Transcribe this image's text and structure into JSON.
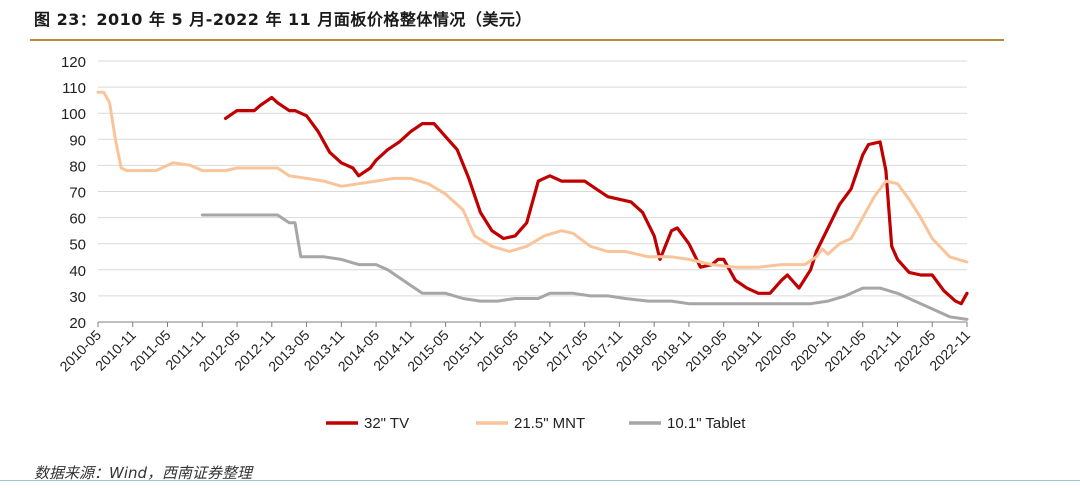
{
  "figure": {
    "title": "图 23：2010 年 5 月-2022 年 11 月面板价格整体情况（美元）",
    "source": "数据来源：Wind，西南证券整理"
  },
  "colors": {
    "tv": "#c00000",
    "mnt": "#f9c49a",
    "tablet": "#a6a6a6",
    "grid": "#d9d9d9",
    "axis": "#7f7f7f",
    "rule": "#b58b3a"
  },
  "chart_data": {
    "type": "line",
    "x_axis": "monthly, 2010-05 to 2022-11 (index 0 = 2010-05)",
    "x_tick_labels": [
      "2010-05",
      "2010-11",
      "2011-05",
      "2011-11",
      "2012-05",
      "2012-11",
      "2013-05",
      "2013-11",
      "2014-05",
      "2014-11",
      "2015-05",
      "2015-11",
      "2016-05",
      "2016-11",
      "2017-05",
      "2017-11",
      "2018-05",
      "2018-11",
      "2019-05",
      "2019-11",
      "2020-05",
      "2020-11",
      "2021-05",
      "2021-11",
      "2022-05",
      "2022-11"
    ],
    "xlim": [
      "2010-05",
      "2022-11"
    ],
    "y_ticks": [
      20,
      30,
      40,
      50,
      60,
      70,
      80,
      90,
      100,
      110,
      120
    ],
    "ylim": [
      20,
      120
    ],
    "grid": "horizontal",
    "legend_position": "bottom",
    "series": [
      {
        "name": "32\" TV",
        "color_key": "tv",
        "points": [
          [
            "2012-03",
            98
          ],
          [
            "2012-05",
            101
          ],
          [
            "2012-08",
            101
          ],
          [
            "2012-09",
            103
          ],
          [
            "2012-11",
            106
          ],
          [
            "2012-12",
            104
          ],
          [
            "2013-02",
            101
          ],
          [
            "2013-03",
            101
          ],
          [
            "2013-05",
            99
          ],
          [
            "2013-07",
            93
          ],
          [
            "2013-09",
            85
          ],
          [
            "2013-11",
            81
          ],
          [
            "2014-01",
            79
          ],
          [
            "2014-02",
            76
          ],
          [
            "2014-04",
            79
          ],
          [
            "2014-05",
            82
          ],
          [
            "2014-07",
            86
          ],
          [
            "2014-09",
            89
          ],
          [
            "2014-11",
            93
          ],
          [
            "2015-01",
            96
          ],
          [
            "2015-03",
            96
          ],
          [
            "2015-05",
            91
          ],
          [
            "2015-07",
            86
          ],
          [
            "2015-09",
            75
          ],
          [
            "2015-11",
            62
          ],
          [
            "2016-01",
            55
          ],
          [
            "2016-03",
            52
          ],
          [
            "2016-05",
            53
          ],
          [
            "2016-07",
            58
          ],
          [
            "2016-09",
            74
          ],
          [
            "2016-11",
            76
          ],
          [
            "2017-01",
            74
          ],
          [
            "2017-03",
            74
          ],
          [
            "2017-05",
            74
          ],
          [
            "2017-07",
            71
          ],
          [
            "2017-09",
            68
          ],
          [
            "2017-11",
            67
          ],
          [
            "2018-01",
            66
          ],
          [
            "2018-03",
            62
          ],
          [
            "2018-05",
            53
          ],
          [
            "2018-06",
            44
          ],
          [
            "2018-08",
            55
          ],
          [
            "2018-09",
            56
          ],
          [
            "2018-11",
            50
          ],
          [
            "2019-01",
            41
          ],
          [
            "2019-03",
            42
          ],
          [
            "2019-04",
            44
          ],
          [
            "2019-05",
            44
          ],
          [
            "2019-07",
            36
          ],
          [
            "2019-09",
            33
          ],
          [
            "2019-11",
            31
          ],
          [
            "2020-01",
            31
          ],
          [
            "2020-03",
            36
          ],
          [
            "2020-04",
            38
          ],
          [
            "2020-06",
            33
          ],
          [
            "2020-08",
            40
          ],
          [
            "2020-09",
            47
          ],
          [
            "2020-11",
            56
          ],
          [
            "2021-01",
            65
          ],
          [
            "2021-03",
            71
          ],
          [
            "2021-05",
            84
          ],
          [
            "2021-06",
            88
          ],
          [
            "2021-08",
            89
          ],
          [
            "2021-09",
            78
          ],
          [
            "2021-10",
            49
          ],
          [
            "2021-11",
            44
          ],
          [
            "2022-01",
            39
          ],
          [
            "2022-03",
            38
          ],
          [
            "2022-05",
            38
          ],
          [
            "2022-07",
            32
          ],
          [
            "2022-09",
            28
          ],
          [
            "2022-10",
            27
          ],
          [
            "2022-11",
            31
          ]
        ]
      },
      {
        "name": "21.5\" MNT",
        "color_key": "mnt",
        "points": [
          [
            "2010-05",
            108
          ],
          [
            "2010-06",
            108
          ],
          [
            "2010-07",
            104
          ],
          [
            "2010-08",
            90
          ],
          [
            "2010-09",
            79
          ],
          [
            "2010-10",
            78
          ],
          [
            "2011-03",
            78
          ],
          [
            "2011-05",
            80
          ],
          [
            "2011-06",
            81
          ],
          [
            "2011-09",
            80
          ],
          [
            "2011-11",
            78
          ],
          [
            "2012-03",
            78
          ],
          [
            "2012-05",
            79
          ],
          [
            "2012-12",
            79
          ],
          [
            "2013-02",
            76
          ],
          [
            "2013-05",
            75
          ],
          [
            "2013-08",
            74
          ],
          [
            "2013-11",
            72
          ],
          [
            "2014-02",
            73
          ],
          [
            "2014-05",
            74
          ],
          [
            "2014-08",
            75
          ],
          [
            "2014-11",
            75
          ],
          [
            "2015-02",
            73
          ],
          [
            "2015-05",
            69
          ],
          [
            "2015-08",
            63
          ],
          [
            "2015-10",
            53
          ],
          [
            "2016-01",
            49
          ],
          [
            "2016-04",
            47
          ],
          [
            "2016-07",
            49
          ],
          [
            "2016-10",
            53
          ],
          [
            "2017-01",
            55
          ],
          [
            "2017-03",
            54
          ],
          [
            "2017-06",
            49
          ],
          [
            "2017-09",
            47
          ],
          [
            "2017-12",
            47
          ],
          [
            "2018-04",
            45
          ],
          [
            "2018-08",
            45
          ],
          [
            "2018-11",
            44
          ],
          [
            "2019-03",
            42
          ],
          [
            "2019-07",
            41
          ],
          [
            "2019-11",
            41
          ],
          [
            "2020-03",
            42
          ],
          [
            "2020-07",
            42
          ],
          [
            "2020-09",
            45
          ],
          [
            "2020-10",
            48
          ],
          [
            "2020-11",
            46
          ],
          [
            "2021-01",
            50
          ],
          [
            "2021-03",
            52
          ],
          [
            "2021-05",
            60
          ],
          [
            "2021-07",
            68
          ],
          [
            "2021-09",
            74
          ],
          [
            "2021-11",
            73
          ],
          [
            "2022-01",
            67
          ],
          [
            "2022-03",
            60
          ],
          [
            "2022-05",
            52
          ],
          [
            "2022-08",
            45
          ],
          [
            "2022-11",
            43
          ]
        ]
      },
      {
        "name": "10.1\" Tablet",
        "color_key": "tablet",
        "points": [
          [
            "2011-11",
            61
          ],
          [
            "2012-06",
            61
          ],
          [
            "2012-09",
            61
          ],
          [
            "2012-12",
            61
          ],
          [
            "2013-02",
            58
          ],
          [
            "2013-03",
            58
          ],
          [
            "2013-04",
            45
          ],
          [
            "2013-08",
            45
          ],
          [
            "2013-11",
            44
          ],
          [
            "2014-02",
            42
          ],
          [
            "2014-05",
            42
          ],
          [
            "2014-07",
            40
          ],
          [
            "2014-09",
            37
          ],
          [
            "2014-11",
            34
          ],
          [
            "2015-01",
            31
          ],
          [
            "2015-05",
            31
          ],
          [
            "2015-08",
            29
          ],
          [
            "2015-11",
            28
          ],
          [
            "2016-02",
            28
          ],
          [
            "2016-05",
            29
          ],
          [
            "2016-09",
            29
          ],
          [
            "2016-11",
            31
          ],
          [
            "2017-03",
            31
          ],
          [
            "2017-06",
            30
          ],
          [
            "2017-09",
            30
          ],
          [
            "2017-12",
            29
          ],
          [
            "2018-04",
            28
          ],
          [
            "2018-08",
            28
          ],
          [
            "2018-11",
            27
          ],
          [
            "2019-02",
            27
          ],
          [
            "2019-06",
            27
          ],
          [
            "2019-09",
            27
          ],
          [
            "2020-02",
            27
          ],
          [
            "2020-05",
            27
          ],
          [
            "2020-08",
            27
          ],
          [
            "2020-11",
            28
          ],
          [
            "2021-02",
            30
          ],
          [
            "2021-05",
            33
          ],
          [
            "2021-08",
            33
          ],
          [
            "2021-11",
            31
          ],
          [
            "2022-02",
            28
          ],
          [
            "2022-05",
            25
          ],
          [
            "2022-08",
            22
          ],
          [
            "2022-11",
            21
          ]
        ]
      }
    ]
  }
}
